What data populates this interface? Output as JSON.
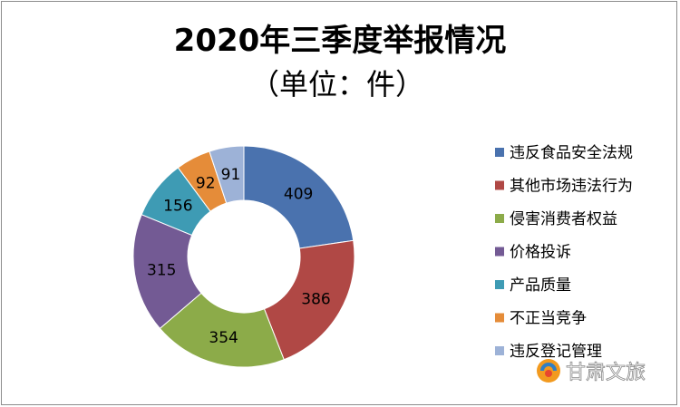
{
  "chart_data": {
    "type": "pie",
    "title": "2020年三季度举报情况",
    "subtitle": "（单位：件）",
    "categories": [
      "违反食品安全法规",
      "其他市场违法行为",
      "侵害消费者权益",
      "价格投诉",
      "产品质量",
      "不正当竞争",
      "违反登记管理"
    ],
    "values": [
      409,
      386,
      354,
      315,
      156,
      92,
      91
    ],
    "colors": [
      "#4a72ae",
      "#b04845",
      "#8cab49",
      "#735a94",
      "#3e9bb4",
      "#e58c39",
      "#9db2d7"
    ],
    "legend_position": "right"
  },
  "watermark": {
    "text": "甘肃文旅"
  }
}
